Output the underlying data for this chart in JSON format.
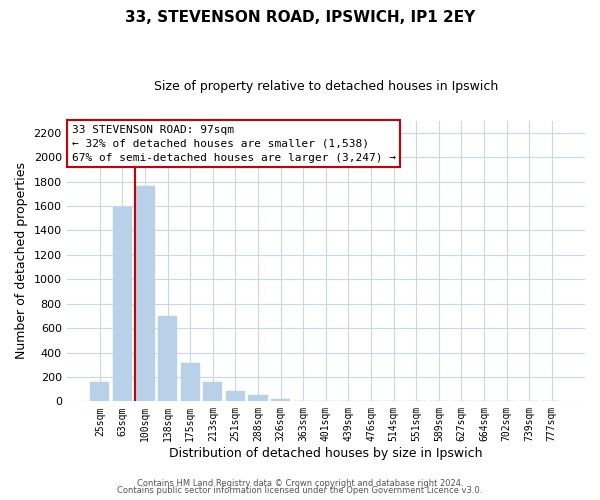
{
  "title": "33, STEVENSON ROAD, IPSWICH, IP1 2EY",
  "subtitle": "Size of property relative to detached houses in Ipswich",
  "xlabel": "Distribution of detached houses by size in Ipswich",
  "ylabel": "Number of detached properties",
  "bar_labels": [
    "25sqm",
    "63sqm",
    "100sqm",
    "138sqm",
    "175sqm",
    "213sqm",
    "251sqm",
    "288sqm",
    "326sqm",
    "363sqm",
    "401sqm",
    "439sqm",
    "476sqm",
    "514sqm",
    "551sqm",
    "589sqm",
    "627sqm",
    "664sqm",
    "702sqm",
    "739sqm",
    "777sqm"
  ],
  "bar_values": [
    160,
    1590,
    1760,
    700,
    315,
    155,
    85,
    50,
    20,
    0,
    0,
    0,
    0,
    0,
    0,
    0,
    0,
    0,
    0,
    0,
    0
  ],
  "highlight_bar_index": 2,
  "red_line_color": "#cc0000",
  "normal_color": "#b8d0e8",
  "annotation_title": "33 STEVENSON ROAD: 97sqm",
  "annotation_line1": "← 32% of detached houses are smaller (1,538)",
  "annotation_line2": "67% of semi-detached houses are larger (3,247) →",
  "annotation_box_facecolor": "#ffffff",
  "annotation_box_edgecolor": "#cc0000",
  "ylim": [
    0,
    2300
  ],
  "yticks": [
    0,
    200,
    400,
    600,
    800,
    1000,
    1200,
    1400,
    1600,
    1800,
    2000,
    2200
  ],
  "footer_line1": "Contains HM Land Registry data © Crown copyright and database right 2024.",
  "footer_line2": "Contains public sector information licensed under the Open Government Licence v3.0.",
  "background_color": "#ffffff",
  "grid_color": "#c8d8e8",
  "fig_width": 6.0,
  "fig_height": 5.0,
  "dpi": 100
}
